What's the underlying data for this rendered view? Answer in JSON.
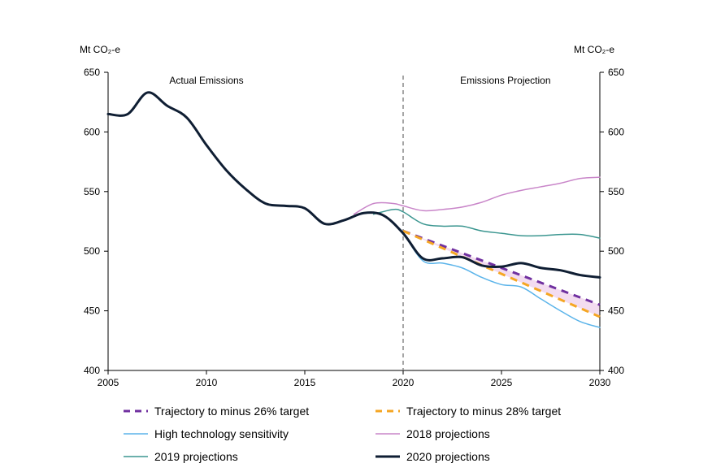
{
  "chart_data": {
    "type": "line",
    "y_unit_left": "Mt CO₂-e",
    "y_unit_right": "Mt CO₂-e",
    "xlim": [
      2005,
      2030
    ],
    "ylim": [
      400,
      650
    ],
    "x_ticks": [
      2005,
      2010,
      2015,
      2020,
      2025,
      2030
    ],
    "y_ticks": [
      400,
      450,
      500,
      550,
      600,
      650
    ],
    "divider_x": 2020,
    "region_labels": [
      {
        "text": "Actual Emissions",
        "x": 2010
      },
      {
        "text": "Emissions Projection",
        "x": 2025.2
      }
    ],
    "grid": false,
    "legend_position": "bottom",
    "shaded_band": {
      "between": [
        "Trajectory to minus 26% target",
        "Trajectory to minus 28% target"
      ],
      "x_range": [
        2020,
        2030
      ],
      "color": "#f3dcf0"
    },
    "series": [
      {
        "name": "Trajectory to minus 26% target",
        "color": "#7030a0",
        "dash": true,
        "width": 3,
        "x": [
          2020,
          2030
        ],
        "y": [
          517,
          455
        ]
      },
      {
        "name": "Trajectory to minus 28% target",
        "color": "#f5a623",
        "dash": true,
        "width": 3,
        "x": [
          2020,
          2030
        ],
        "y": [
          517,
          445
        ]
      },
      {
        "name": "High technology sensitivity",
        "color": "#5bb4ea",
        "dash": false,
        "width": 1.5,
        "x": [
          2020,
          2021,
          2022,
          2023,
          2024,
          2025,
          2026,
          2027,
          2028,
          2029,
          2030
        ],
        "y": [
          516,
          492,
          490,
          486,
          478,
          472,
          470,
          460,
          450,
          441,
          436
        ]
      },
      {
        "name": "2018 projections",
        "color": "#c986c9",
        "dash": false,
        "width": 1.5,
        "x": [
          2017.5,
          2018.5,
          2019.5,
          2020,
          2021,
          2022,
          2023,
          2024,
          2025,
          2026,
          2027,
          2028,
          2029,
          2030
        ],
        "y": [
          531,
          540,
          540,
          538,
          534,
          535,
          537,
          541,
          547,
          551,
          554,
          557,
          561,
          562
        ]
      },
      {
        "name": "2019 projections",
        "color": "#3b9690",
        "dash": false,
        "width": 1.5,
        "x": [
          2018.5,
          2019.5,
          2020,
          2021,
          2022,
          2023,
          2024,
          2025,
          2026,
          2027,
          2028,
          2029,
          2030
        ],
        "y": [
          531,
          535,
          533,
          523,
          521,
          521,
          517,
          515,
          513,
          513,
          514,
          514,
          511
        ]
      },
      {
        "name": "2020 projections",
        "color": "#0f1e33",
        "dash": false,
        "width": 3,
        "x": [
          2005,
          2006,
          2007,
          2008,
          2009,
          2010,
          2011,
          2012,
          2013,
          2014,
          2015,
          2016,
          2017,
          2018,
          2019,
          2020,
          2021,
          2022,
          2023,
          2024,
          2025,
          2026,
          2027,
          2028,
          2029,
          2030
        ],
        "y": [
          615,
          615,
          633,
          622,
          612,
          589,
          568,
          552,
          540,
          538,
          536,
          523,
          526,
          532,
          530,
          515,
          494,
          494,
          495,
          488,
          487,
          490,
          486,
          484,
          480,
          478
        ]
      }
    ]
  }
}
